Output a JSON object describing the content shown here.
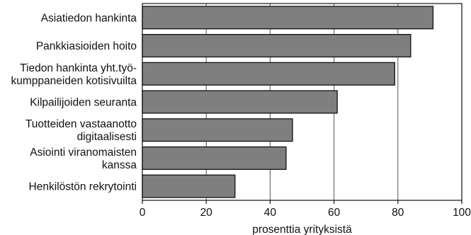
{
  "chart_data": {
    "type": "bar",
    "orientation": "horizontal",
    "categories": [
      [
        "Asiatiedon hankinta"
      ],
      [
        "Pankkiasioiden hoito"
      ],
      [
        "Tiedon hankinta yht.työ-",
        "kumppaneiden kotisivuilta"
      ],
      [
        "Kilpailijoiden seuranta"
      ],
      [
        "Tuotteiden vastaanotto",
        "digitaalisesti"
      ],
      [
        "Asiointi viranomaisten",
        "kanssa"
      ],
      [
        "Henkilöstön rekrytointi"
      ]
    ],
    "values": [
      91,
      84,
      79,
      61,
      47,
      45,
      29
    ],
    "xlabel": "prosenttia yrityksistä",
    "ylabel": "",
    "xlim": [
      0,
      100
    ],
    "xticks": [
      0,
      20,
      40,
      60,
      80,
      100
    ],
    "grid": "vertical",
    "colors": {
      "bar_fill": "#7f7f7f",
      "bar_stroke": "#111111",
      "grid": "#555555",
      "frame": "#111111"
    }
  }
}
